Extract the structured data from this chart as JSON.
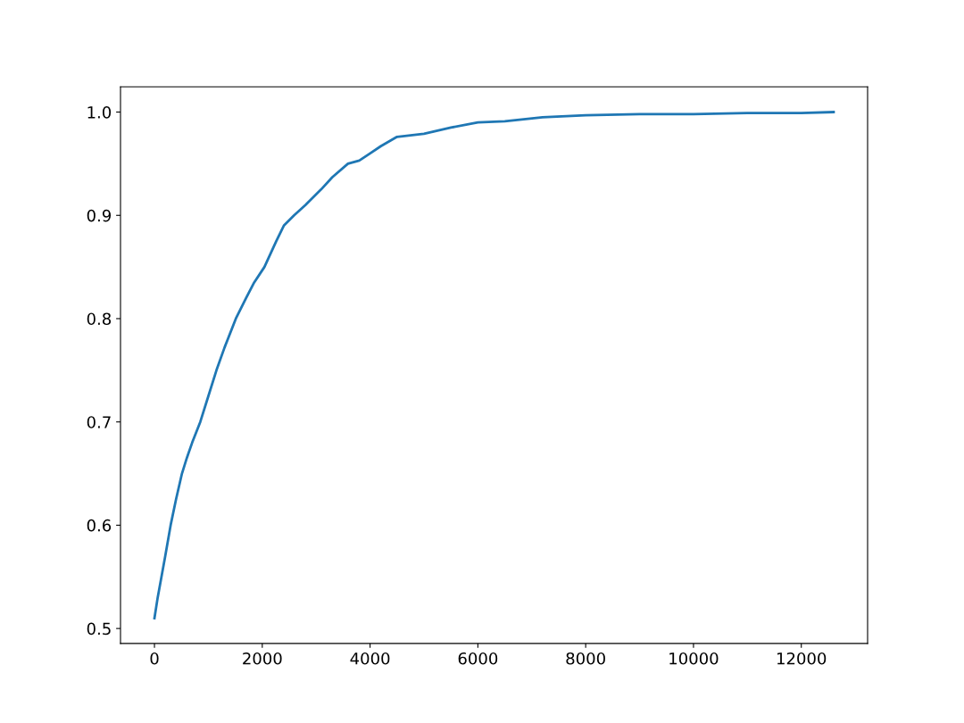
{
  "chart_data": {
    "type": "line",
    "x": [
      0,
      60,
      130,
      200,
      300,
      400,
      510,
      600,
      700,
      850,
      1000,
      1150,
      1300,
      1510,
      1700,
      1850,
      2040,
      2260,
      2400,
      2590,
      2800,
      3090,
      3300,
      3590,
      3800,
      4000,
      4200,
      4500,
      5000,
      5500,
      6000,
      6500,
      7200,
      8000,
      9000,
      10000,
      11000,
      12000,
      12600
    ],
    "series": [
      {
        "color": "#1f77b4",
        "values": [
          0.51,
          0.53,
          0.55,
          0.57,
          0.6,
          0.625,
          0.65,
          0.665,
          0.68,
          0.7,
          0.725,
          0.75,
          0.772,
          0.8,
          0.82,
          0.835,
          0.85,
          0.875,
          0.89,
          0.9,
          0.91,
          0.925,
          0.937,
          0.95,
          0.953,
          0.96,
          0.967,
          0.976,
          0.979,
          0.985,
          0.99,
          0.991,
          0.995,
          0.997,
          0.998,
          0.998,
          0.999,
          0.999,
          1.0
        ]
      }
    ],
    "xlim": [
      -630,
      13230
    ],
    "ylim": [
      0.4855,
      1.0245
    ],
    "xticks": [
      0,
      2000,
      4000,
      6000,
      8000,
      10000,
      12000
    ],
    "yticks": [
      {
        "value": 0.5,
        "label": "0.5"
      },
      {
        "value": 0.6,
        "label": "0.6"
      },
      {
        "value": 0.7,
        "label": "0.7"
      },
      {
        "value": 0.8,
        "label": "0.8"
      },
      {
        "value": 0.9,
        "label": "0.9"
      },
      {
        "value": 1.0,
        "label": "1.0"
      }
    ],
    "grid": false,
    "legend": false
  }
}
